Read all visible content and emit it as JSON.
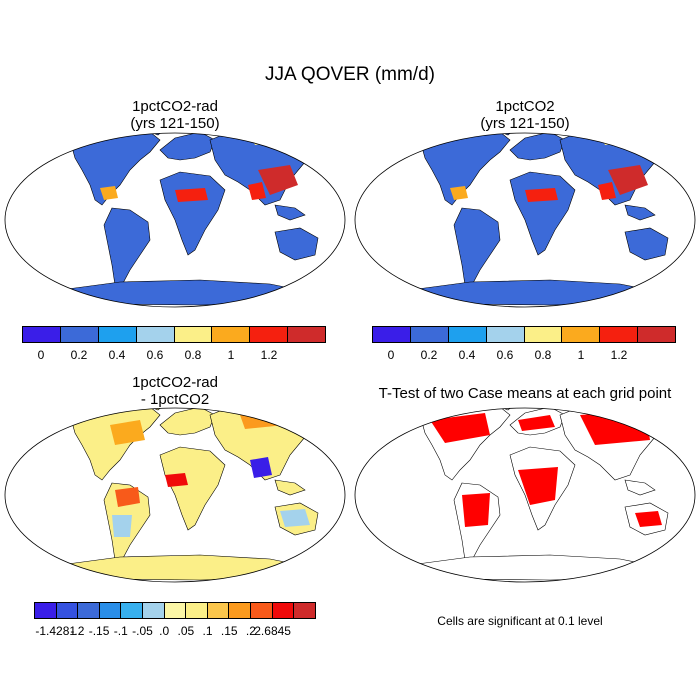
{
  "figure_title": "JJA QOVER (mm/d)",
  "panels": [
    {
      "title_line1": "1pctCO2-rad",
      "title_line2": "(yrs 121-150)"
    },
    {
      "title_line1": "1pctCO2",
      "title_line2": "(yrs 121-150)"
    },
    {
      "title_line1": "1pctCO2-rad",
      "title_line2": "- 1pctCO2"
    },
    {
      "title_line1": "T-Test of two Case means at each grid point",
      "title_line2": ""
    }
  ],
  "colorbar_abs": {
    "colors": [
      "#3a1ee8",
      "#3c6ad8",
      "#1ea0ee",
      "#a4d2ec",
      "#fbef88",
      "#fbaa1e",
      "#f5200f",
      "#cf2b2b"
    ],
    "labels": [
      "0",
      "0.2",
      "0.4",
      "0.6",
      "0.8",
      "1",
      "1.2"
    ]
  },
  "colorbar_diff": {
    "colors": [
      "#3a1ee8",
      "#3552e0",
      "#3c6ad8",
      "#2a8ee8",
      "#38b0ee",
      "#a4d2ec",
      "#fbf6a6",
      "#fbef88",
      "#fbc64c",
      "#fb9a1e",
      "#f85a1a",
      "#f00a0a",
      "#cf2b2b"
    ],
    "labels": [
      "-1.4281",
      "-.2",
      "-.15",
      "-.1",
      "-.05",
      ".0",
      ".05",
      ".1",
      ".15",
      ".2",
      "2.6845"
    ]
  },
  "ttest_note": "Cells are significant at 0.1 level",
  "colors": {
    "land_abs": "#3c6ad8",
    "land_diff": "#fbef88",
    "significant": "#ff0000"
  }
}
